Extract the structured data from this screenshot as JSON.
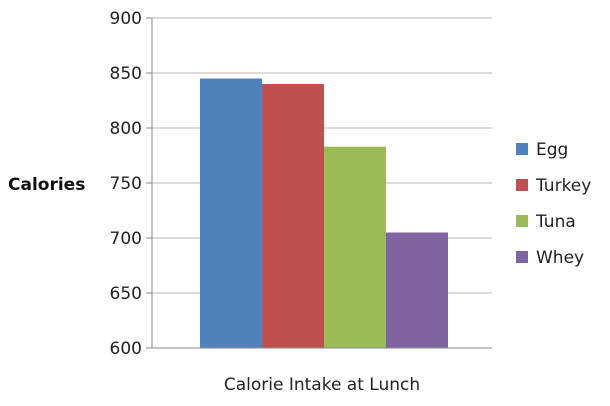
{
  "chart_data": {
    "type": "bar",
    "title": "",
    "xlabel": "Calorie Intake at Lunch",
    "ylabel": "Calories",
    "ylim": [
      600,
      900
    ],
    "yticks": [
      600,
      650,
      700,
      750,
      800,
      850,
      900
    ],
    "grid": true,
    "legend_position": "right",
    "series": [
      {
        "name": "Egg",
        "value": 845,
        "color": "#4F81BD"
      },
      {
        "name": "Turkey",
        "value": 840,
        "color": "#C0504D"
      },
      {
        "name": "Tuna",
        "value": 783,
        "color": "#9BBB59"
      },
      {
        "name": "Whey",
        "value": 705,
        "color": "#8064A2"
      }
    ]
  }
}
